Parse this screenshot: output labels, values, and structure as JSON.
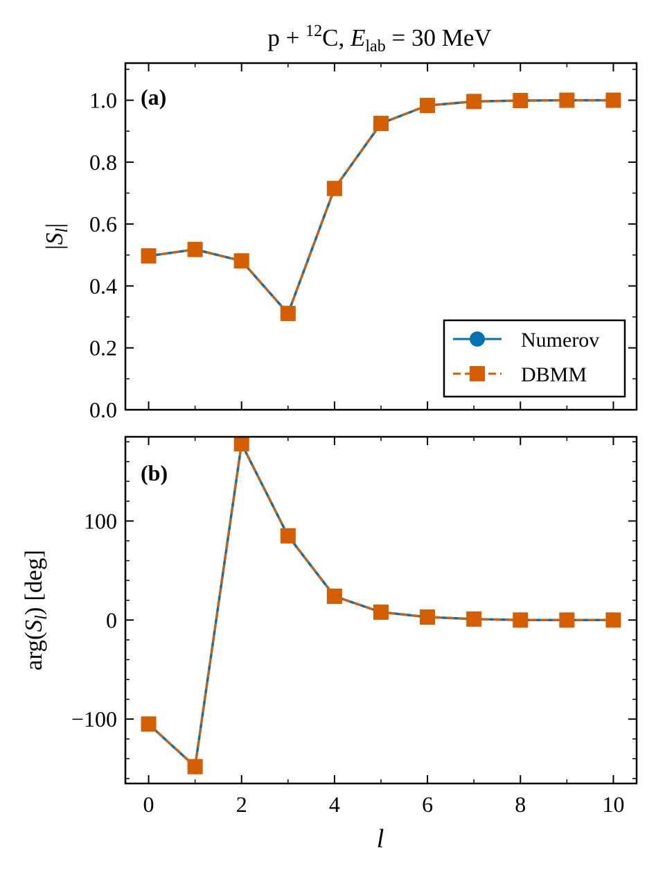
{
  "chart_data": [
    {
      "type": "line",
      "panel_label": "(a)",
      "title_parts": {
        "a": "p + ",
        "sup": "12",
        "b": "C, ",
        "e": "E",
        "sub": "lab",
        "c": " = 30 MeV"
      },
      "ylabel_parts": {
        "pre": "|",
        "s": "S",
        "sub": "l",
        "post": "|"
      },
      "xlabel": "l",
      "x": [
        0,
        1,
        2,
        3,
        4,
        5,
        6,
        7,
        8,
        9,
        10
      ],
      "xlim": [
        -0.5,
        10.5
      ],
      "ylim": [
        0,
        1.12
      ],
      "xticks": [
        0,
        2,
        4,
        6,
        8,
        10
      ],
      "yticks": [
        0.0,
        0.2,
        0.4,
        0.6,
        0.8,
        1.0
      ],
      "ytick_labels": [
        "0.0",
        "0.2",
        "0.4",
        "0.6",
        "0.8",
        "1.0"
      ],
      "series": [
        {
          "name": "Numerov",
          "color": "#0072B2",
          "marker": "circle",
          "linestyle": "solid",
          "values": [
            0.497,
            0.518,
            0.481,
            0.311,
            0.715,
            0.925,
            0.983,
            0.996,
            0.999,
            1.0,
            1.0
          ]
        },
        {
          "name": "DBMM",
          "color": "#D55E00",
          "marker": "square",
          "linestyle": "dashed",
          "values": [
            0.497,
            0.518,
            0.481,
            0.311,
            0.715,
            0.925,
            0.983,
            0.996,
            0.999,
            1.0,
            1.0
          ]
        }
      ],
      "legend": {
        "position": "lower-right",
        "entries": [
          "Numerov",
          "DBMM"
        ]
      }
    },
    {
      "type": "line",
      "panel_label": "(b)",
      "ylabel_parts": {
        "pre": "arg(",
        "s": "S",
        "sub": "l",
        "post": ") [deg]"
      },
      "xlabel": "l",
      "x": [
        0,
        1,
        2,
        3,
        4,
        5,
        6,
        7,
        8,
        9,
        10
      ],
      "xlim": [
        -0.5,
        10.5
      ],
      "ylim": [
        -165,
        185
      ],
      "xticks": [
        0,
        2,
        4,
        6,
        8,
        10
      ],
      "xtick_labels": [
        "0",
        "2",
        "4",
        "6",
        "8",
        "10"
      ],
      "yticks": [
        -100,
        0,
        100
      ],
      "ytick_labels": [
        "−100",
        "0",
        "100"
      ],
      "series": [
        {
          "name": "Numerov",
          "color": "#0072B2",
          "marker": "circle",
          "linestyle": "solid",
          "values": [
            -105,
            -148,
            178,
            85,
            24,
            8,
            3,
            1,
            0,
            0,
            0
          ]
        },
        {
          "name": "DBMM",
          "color": "#D55E00",
          "marker": "square",
          "linestyle": "dashed",
          "values": [
            -105,
            -148,
            178,
            85,
            24,
            8,
            3,
            1,
            0,
            0,
            0
          ]
        }
      ]
    }
  ]
}
